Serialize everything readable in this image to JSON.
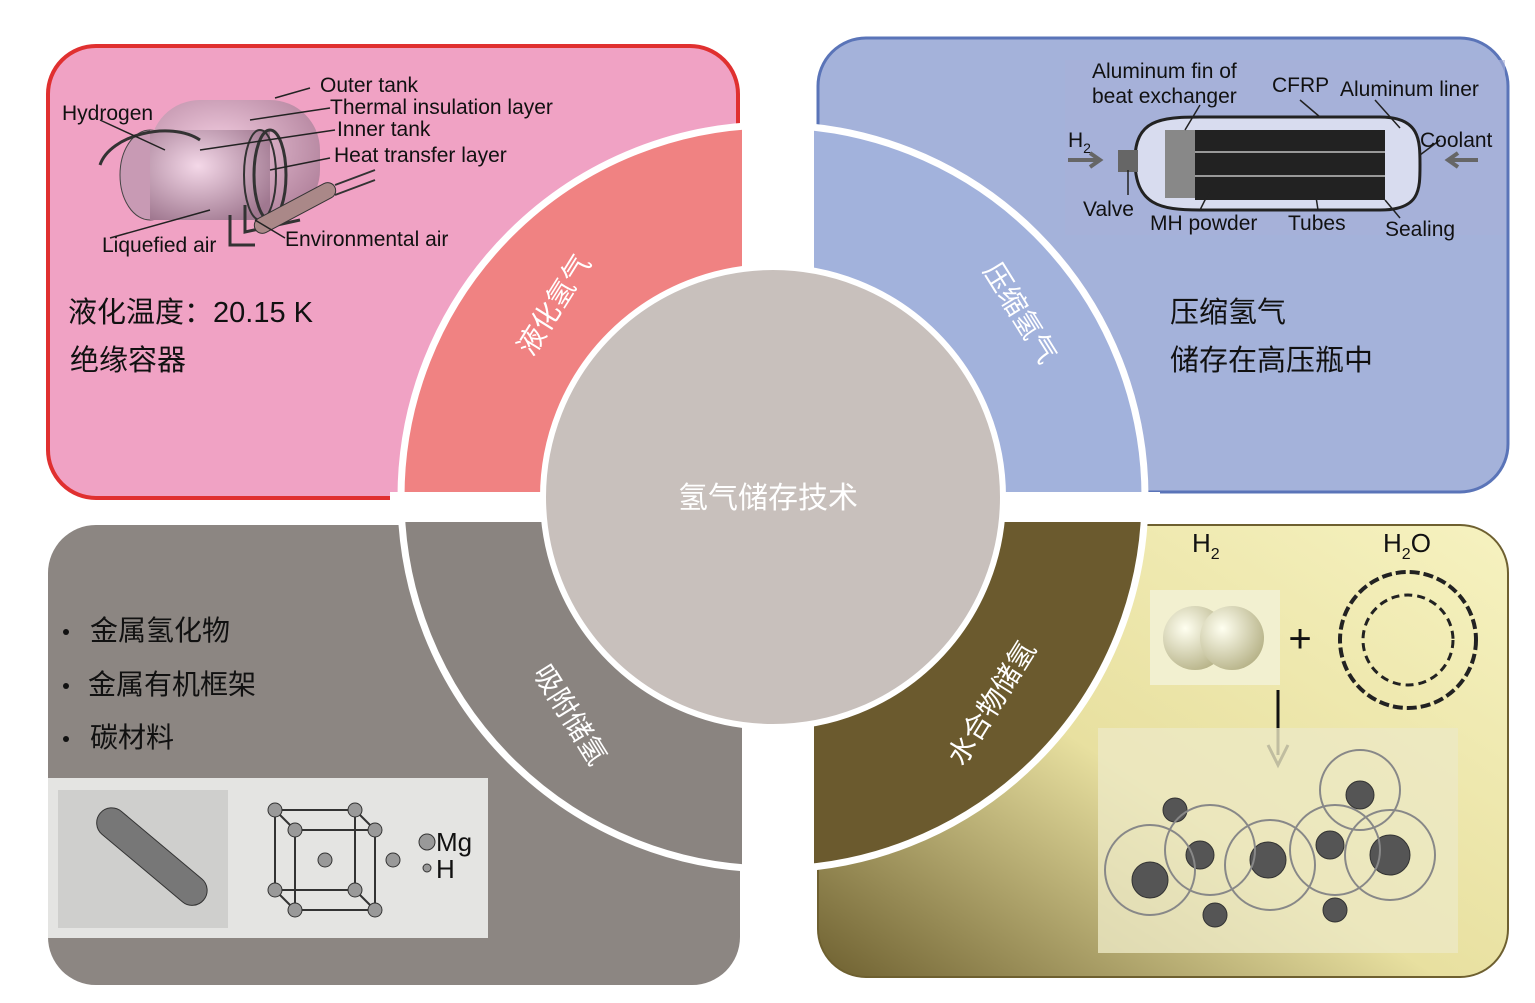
{
  "center": {
    "title": "氢气储存技术"
  },
  "quadrants": {
    "liquefied": {
      "ring_label": "液化氢气",
      "color": "#f08282",
      "panel_color": "#f0a2c4",
      "border_color": "#e03030",
      "lines": [
        "液化温度：20.15 K",
        "绝缘容器"
      ],
      "diagram_labels": {
        "hydrogen": "Hydrogen",
        "outer_tank": "Outer tank",
        "thermal_insulation": "Thermal insulation layer",
        "inner_tank": "Inner tank",
        "heat_transfer": "Heat transfer layer",
        "liquefied_air": "Liquefied air",
        "environmental_air": "Environmental air"
      }
    },
    "compressed": {
      "ring_label": "压缩氢气",
      "color": "#a2b2dc",
      "panel_color": "#a4b2da",
      "lines": [
        "压缩氢气",
        "储存在高压瓶中"
      ],
      "diagram_labels": {
        "fin_line1": "Aluminum fin of",
        "fin_line2": "beat exchanger",
        "cfrp": "CFRP",
        "liner": "Aluminum liner",
        "h2": "H",
        "h2_sub": "2",
        "coolant": "Coolant",
        "valve": "Valve",
        "mh_powder": "MH powder",
        "tubes": "Tubes",
        "sealing": "Sealing"
      }
    },
    "adsorption": {
      "ring_label": "吸附储氢",
      "color": "#8a8480",
      "panel_color": "#8c8682",
      "bullets": [
        "金属氢化物",
        "金属有机框架",
        "碳材料"
      ],
      "legend": {
        "mg": "Mg",
        "h": "H"
      }
    },
    "hydrate": {
      "ring_label": "水合物储氢",
      "color": "#6b5a2e",
      "panel_color": "#f4f0b8",
      "labels": {
        "h2": "H",
        "h2_sub": "2",
        "h2o_h": "H",
        "h2o_sub": "2",
        "h2o_o": "O",
        "plus": "+"
      }
    }
  }
}
